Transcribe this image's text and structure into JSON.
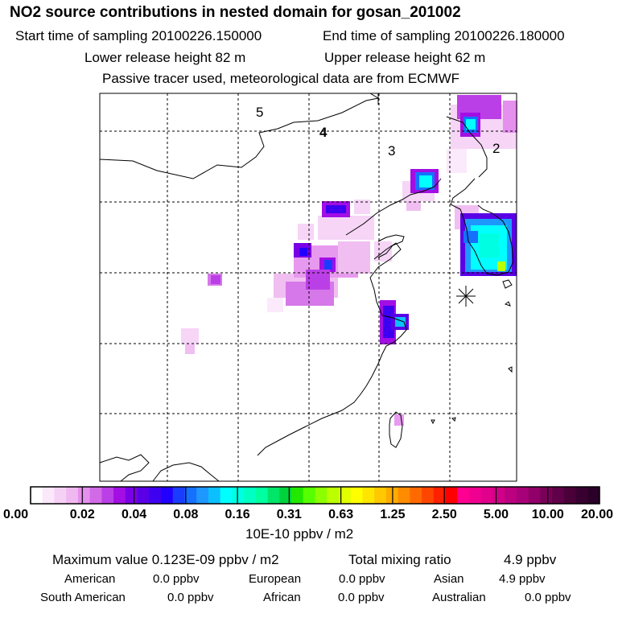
{
  "header": {
    "title": "NO2 source contributions in nested domain for gosan_201002",
    "start_label": "Start time of sampling 20100226.150000",
    "end_label": "End time of sampling 20100226.180000",
    "lower_label": "Lower release height   82 m",
    "upper_label": "Upper release height   62 m",
    "note": "Passive tracer used, meteorological data are from ECMWF"
  },
  "chart_data": {
    "type": "heatmap",
    "title": "NO2 source contributions in nested domain for gosan_201002",
    "region_labels": [
      "5",
      "4",
      "3",
      "2"
    ],
    "colorbar": {
      "unit_label": "10E-10 ppbv / m2",
      "tick_labels": [
        "0.00",
        "0.02",
        "0.04",
        "0.08",
        "0.16",
        "0.31",
        "0.63",
        "1.25",
        "2.50",
        "5.00",
        "10.00",
        "20.00"
      ],
      "colors": [
        "#ffffff",
        "#fbe8fb",
        "#f6d1f6",
        "#f0b8f0",
        "#e58fee",
        "#d26ae8",
        "#bb3fe6",
        "#a20ee4",
        "#7a00e6",
        "#5a00e6",
        "#3d00f0",
        "#2200ff",
        "#1a3cff",
        "#1670ff",
        "#1e98ff",
        "#0cc0ff",
        "#00ffff",
        "#00ffe2",
        "#00ffc2",
        "#00ffa0",
        "#00e56a",
        "#00d23c",
        "#22e800",
        "#55ff00",
        "#8cff00",
        "#bbff00",
        "#e2ff00",
        "#ffff00",
        "#ffe600",
        "#ffc800",
        "#ffab00",
        "#ff8c00",
        "#ff6a00",
        "#ff4600",
        "#ff2000",
        "#ff0000",
        "#ff0090",
        "#f00090",
        "#e0008c",
        "#d00088",
        "#bb0080",
        "#a80078",
        "#900068",
        "#780058",
        "#600048",
        "#4a0038",
        "#380030",
        "#2a0028"
      ]
    },
    "stats": {
      "max_label": "Maximum value  0.123E-09 ppbv / m2",
      "total_label": "Total mixing ratio",
      "total_value": "4.9 ppbv",
      "american_label": "American",
      "american_value": "0.0 ppbv",
      "european_label": "European",
      "european_value": "0.0 ppbv",
      "asian_label": "Asian",
      "asian_value": "4.9 ppbv",
      "south_american_label": "South American",
      "south_american_value": "0.0 ppbv",
      "african_label": "African",
      "african_value": "0.0 ppbv",
      "australian_label": "Australian",
      "australian_value": "0.0 ppbv"
    }
  }
}
